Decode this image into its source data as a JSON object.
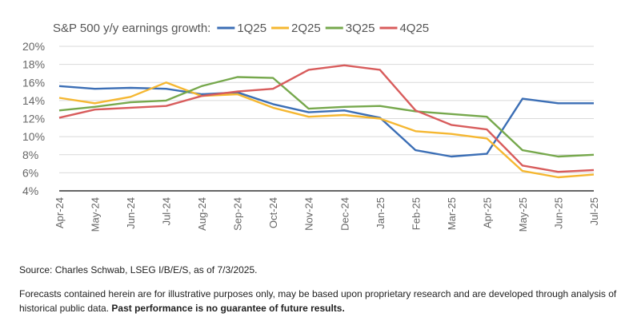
{
  "chart_data": {
    "type": "line",
    "title": "S&P 500 y/y earnings growth:",
    "x": [
      "Apr-24",
      "May-24",
      "Jun-24",
      "Jul-24",
      "Aug-24",
      "Sep-24",
      "Oct-24",
      "Nov-24",
      "Dec-24",
      "Jan-25",
      "Feb-25",
      "Mar-25",
      "Apr-25",
      "May-25",
      "Jun-25",
      "Jul-25"
    ],
    "ylim": [
      4,
      20
    ],
    "yticks": [
      "4%",
      "6%",
      "8%",
      "10%",
      "12%",
      "14%",
      "16%",
      "18%",
      "20%"
    ],
    "grid": true,
    "legend": "top",
    "series": [
      {
        "name": "1Q25",
        "color": "#3b6eb5",
        "values": [
          15.6,
          15.3,
          15.4,
          15.3,
          14.7,
          14.9,
          13.6,
          12.7,
          12.9,
          12.1,
          8.5,
          7.8,
          8.1,
          14.2,
          13.7,
          13.7
        ]
      },
      {
        "name": "2Q25",
        "color": "#f5b731",
        "values": [
          14.3,
          13.7,
          14.4,
          16.0,
          14.5,
          14.7,
          13.2,
          12.2,
          12.4,
          12.0,
          10.6,
          10.3,
          9.8,
          6.2,
          5.5,
          5.8
        ]
      },
      {
        "name": "3Q25",
        "color": "#76a84c",
        "values": [
          12.9,
          13.3,
          13.8,
          14.0,
          15.6,
          16.6,
          16.5,
          13.1,
          13.3,
          13.4,
          12.8,
          12.5,
          12.2,
          8.5,
          7.8,
          8.0
        ]
      },
      {
        "name": "4Q25",
        "color": "#d85c5c",
        "values": [
          12.1,
          13.0,
          13.2,
          13.4,
          14.5,
          15.0,
          15.3,
          17.4,
          17.9,
          17.4,
          12.9,
          11.3,
          10.8,
          6.8,
          6.1,
          6.3
        ]
      }
    ]
  },
  "footer": {
    "source": "Source: Charles Schwab, LSEG I/B/E/S, as of 7/3/2025.",
    "disclaimer": "Forecasts contained herein are for illustrative purposes only, may be based upon proprietary research and are developed through analysis of historical public data.",
    "disclaimer_bold": "Past performance is no guarantee of future results."
  }
}
